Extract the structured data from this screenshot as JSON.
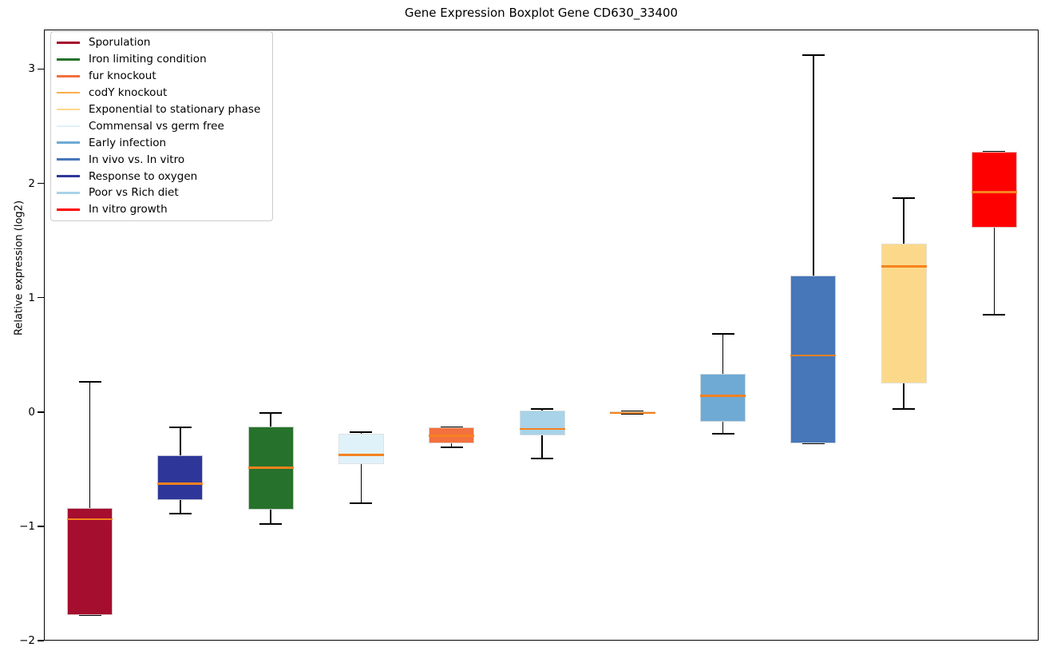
{
  "chart_data": {
    "type": "boxplot",
    "title": "Gene Expression Boxplot Gene CD630_33400",
    "ylabel": "Relative expression (log2)",
    "xlabel": "",
    "ylim": [
      -2.0,
      3.345
    ],
    "yticks": [
      3,
      2,
      1,
      0,
      -1,
      -2
    ],
    "grid": false,
    "legend_position": "upper-left",
    "median_color": "#F5821F",
    "whisker_color": "#000000",
    "legend": [
      {
        "label": "Sporulation",
        "color": "#A50E2E"
      },
      {
        "label": "Iron limiting condition",
        "color": "#26722C"
      },
      {
        "label": "fur knockout",
        "color": "#F3703F"
      },
      {
        "label": "codY knockout",
        "color": "#FBAE49"
      },
      {
        "label": "Exponential to stationary phase",
        "color": "#FCD98A"
      },
      {
        "label": "Commensal vs germ free",
        "color": "#E0F2F9"
      },
      {
        "label": "Early infection",
        "color": "#6FAAD4"
      },
      {
        "label": "In vivo vs. In vitro",
        "color": "#4776B9"
      },
      {
        "label": "Response to oxygen",
        "color": "#2F3699"
      },
      {
        "label": "Poor vs Rich diet",
        "color": "#A8D3E8"
      },
      {
        "label": "In vitro growth",
        "color": "#FF0000"
      }
    ],
    "boxes": [
      {
        "label": "Sporulation",
        "color": "#A50E2E",
        "min": -1.77,
        "q1": -1.77,
        "median": -0.93,
        "q3": -0.83,
        "max": 0.27
      },
      {
        "label": "Response to oxygen",
        "color": "#2F3699",
        "min": -0.88,
        "q1": -0.76,
        "median": -0.62,
        "q3": -0.37,
        "max": -0.13
      },
      {
        "label": "Iron limiting condition",
        "color": "#26722C",
        "min": -0.97,
        "q1": -0.85,
        "median": -0.48,
        "q3": -0.12,
        "max": 0.0
      },
      {
        "label": "Commensal vs germ free",
        "color": "#E0F2F9",
        "min": -0.79,
        "q1": -0.45,
        "median": -0.37,
        "q3": -0.18,
        "max": -0.17
      },
      {
        "label": "fur knockout",
        "color": "#F3703F",
        "min": -0.3,
        "q1": -0.27,
        "median": -0.2,
        "q3": -0.13,
        "max": -0.13
      },
      {
        "label": "Poor vs Rich diet",
        "color": "#A8D3E8",
        "min": -0.4,
        "q1": -0.2,
        "median": -0.14,
        "q3": 0.02,
        "max": 0.03
      },
      {
        "label": "codY knockout",
        "color": "#FBAE49",
        "min": -0.01,
        "q1": -0.01,
        "median": 0.0,
        "q3": 0.01,
        "max": 0.01
      },
      {
        "label": "Early infection",
        "color": "#6FAAD4",
        "min": -0.18,
        "q1": -0.08,
        "median": 0.15,
        "q3": 0.34,
        "max": 0.69
      },
      {
        "label": "In vivo vs. In vitro",
        "color": "#4776B9",
        "min": -0.27,
        "q1": -0.27,
        "median": 0.5,
        "q3": 1.2,
        "max": 3.13
      },
      {
        "label": "Exponential to stationary phase",
        "color": "#FCD98A",
        "min": 0.03,
        "q1": 0.26,
        "median": 1.28,
        "q3": 1.48,
        "max": 1.88
      },
      {
        "label": "In vitro growth",
        "color": "#FF0000",
        "min": 0.86,
        "q1": 1.62,
        "median": 1.93,
        "q3": 2.28,
        "max": 2.28
      }
    ]
  }
}
